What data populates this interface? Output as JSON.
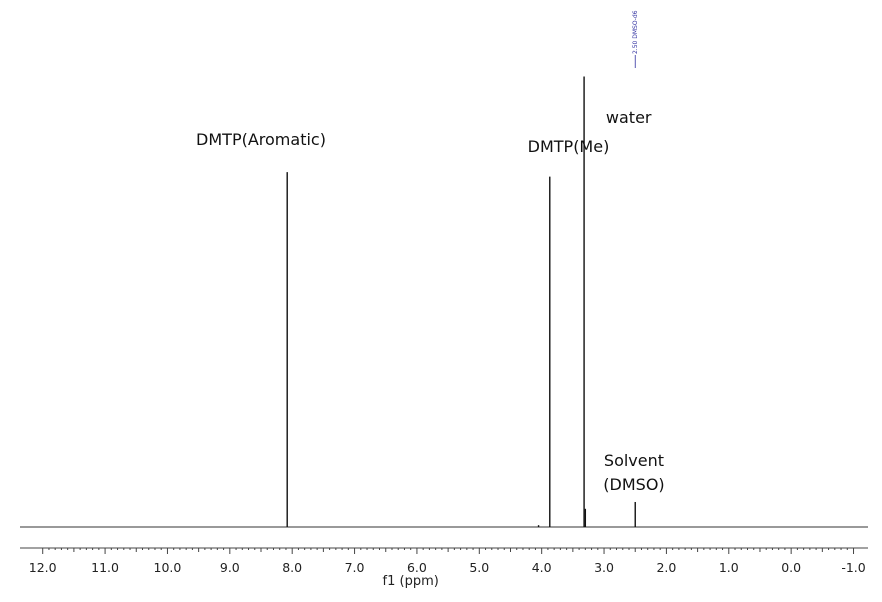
{
  "chart_data": {
    "type": "line",
    "xlabel": "f1 (ppm)",
    "xlim": [
      12.3,
      -1.2
    ],
    "x_reversed": true,
    "ticks": [
      "12.0",
      "11.0",
      "10.0",
      "9.0",
      "8.0",
      "7.0",
      "6.0",
      "5.0",
      "4.0",
      "3.0",
      "2.0",
      "1.0",
      "0.0",
      "-1.0"
    ],
    "ylim": [
      0,
      1.0
    ],
    "series": [
      {
        "peaks": [
          {
            "x": 8.08,
            "height": 0.78
          },
          {
            "x": 3.87,
            "height": 0.77
          },
          {
            "x": 3.32,
            "height": 0.99
          },
          {
            "x": 3.3,
            "height": 0.04
          },
          {
            "x": 2.5,
            "height": 0.055
          },
          {
            "x": 4.05,
            "height": 0.004
          }
        ]
      }
    ],
    "annotations": [
      {
        "text": "DMTP(Aromatic)",
        "x": 8.5
      },
      {
        "text": "DMTP(Me)",
        "x": 3.57
      },
      {
        "text": "water",
        "x": 2.97
      },
      {
        "text": "Solvent",
        "x": 2.52
      },
      {
        "text": "(DMSO)",
        "x": 2.52
      }
    ],
    "peak_label": {
      "text": "2.50 DMSO-d6",
      "x": 2.5
    },
    "grid": false
  }
}
